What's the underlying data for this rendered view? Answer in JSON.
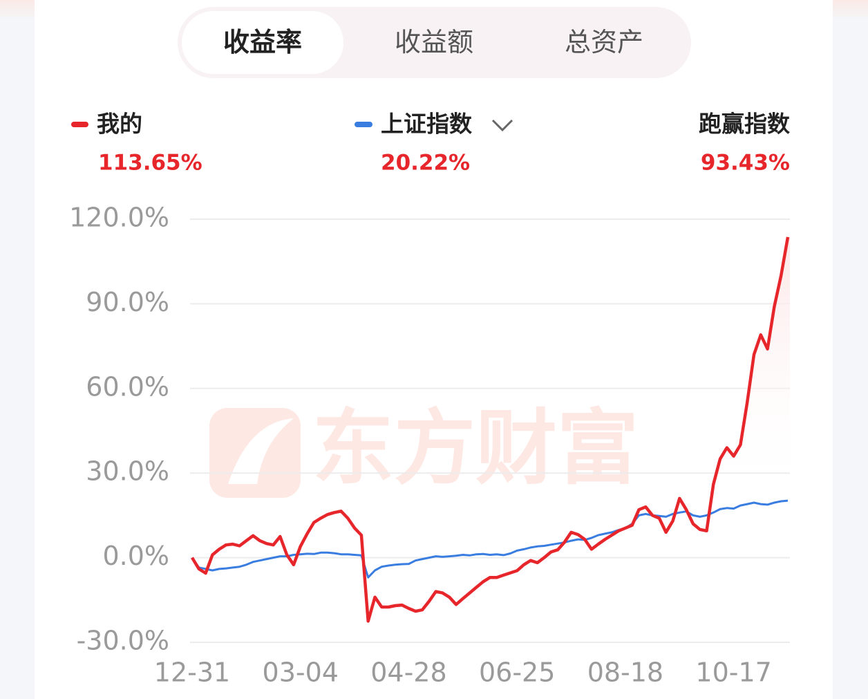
{
  "tabs": [
    "收益率",
    "收益额",
    "总资产"
  ],
  "summary": {
    "mine_value": "113.65%",
    "index_value": "20.22%",
    "outperform_label": "跑赢指数",
    "outperform_value": "93.43%"
  },
  "watermark": "东方财富",
  "chart_data": {
    "type": "line",
    "categories": [
      "12-31",
      null,
      null,
      null,
      null,
      null,
      null,
      null,
      null,
      null,
      null,
      null,
      null,
      null,
      null,
      null,
      "03-04",
      null,
      null,
      null,
      null,
      null,
      null,
      null,
      null,
      null,
      null,
      null,
      null,
      null,
      null,
      null,
      "04-28",
      null,
      null,
      null,
      null,
      null,
      null,
      null,
      null,
      null,
      null,
      null,
      null,
      null,
      null,
      null,
      "06-25",
      null,
      null,
      null,
      null,
      null,
      null,
      null,
      null,
      null,
      null,
      null,
      null,
      null,
      null,
      null,
      "08-18",
      null,
      null,
      null,
      null,
      null,
      null,
      null,
      null,
      null,
      null,
      null,
      null,
      null,
      null,
      null,
      "10-17",
      null,
      null,
      null,
      null,
      null,
      null,
      null,
      null
    ],
    "series": [
      {
        "name": "我的",
        "color": "#e6262b",
        "values": [
          0,
          -4,
          -5.5,
          1,
          3,
          4.5,
          4.8,
          4.2,
          6,
          7.8,
          6,
          5,
          4.5,
          7.5,
          1,
          -2.5,
          4,
          8.5,
          12.5,
          14,
          15.3,
          16,
          16.5,
          14,
          10.5,
          8,
          -22.5,
          -14,
          -17.5,
          -17.5,
          -17,
          -16.8,
          -18,
          -19,
          -18.5,
          -15.5,
          -12,
          -12.5,
          -14,
          -16.6,
          -14.5,
          -12.5,
          -10.5,
          -8.5,
          -7,
          -7,
          -6.2,
          -5.4,
          -4.6,
          -2.5,
          -1,
          -1.8,
          0,
          2,
          2.8,
          5.5,
          9,
          8.2,
          6.5,
          3,
          4.8,
          6.5,
          8,
          9.5,
          10.5,
          11.5,
          17,
          18,
          15,
          14,
          9,
          13,
          21,
          17,
          12,
          10,
          9.5,
          26,
          35,
          39,
          36,
          40,
          55,
          72,
          79,
          74,
          89,
          100,
          113.65
        ]
      },
      {
        "name": "上证指数",
        "color": "#3a7de0",
        "values": [
          0,
          -3.5,
          -4,
          -4.5,
          -4,
          -3.8,
          -3.5,
          -3.2,
          -2.5,
          -1.5,
          -1,
          -0.5,
          0,
          0.5,
          0.5,
          1,
          1.2,
          1.4,
          1.3,
          1.8,
          1.8,
          1.6,
          1.2,
          1.2,
          1,
          0.8,
          -7,
          -4.5,
          -3.2,
          -2.8,
          -2.5,
          -2.3,
          -2.2,
          -1,
          -0.5,
          0,
          0.5,
          0.3,
          0.5,
          0.7,
          1,
          0.8,
          1.2,
          1.3,
          1,
          1.2,
          0.9,
          1.5,
          2.5,
          3,
          3.6,
          4,
          4.2,
          4.6,
          5,
          5.4,
          6,
          6.5,
          6.3,
          7,
          8,
          8.5,
          9,
          9.8,
          10.5,
          12,
          15,
          15.5,
          15,
          14.8,
          14.5,
          15.5,
          16,
          16.4,
          15,
          14.5,
          15,
          16,
          17.2,
          17.6,
          17.4,
          18.5,
          19,
          19.5,
          19,
          18.8,
          19.5,
          20,
          20.22
        ]
      }
    ],
    "ylim": [
      -30,
      120
    ],
    "yticks": [
      {
        "value": -30,
        "label": "-30.0%"
      },
      {
        "value": 0,
        "label": "0.0%"
      },
      {
        "value": 30,
        "label": "30.0%"
      },
      {
        "value": 60,
        "label": "60.0%"
      },
      {
        "value": 90,
        "label": "90.0%"
      },
      {
        "value": 120,
        "label": "120.0%"
      }
    ],
    "grid": true
  }
}
